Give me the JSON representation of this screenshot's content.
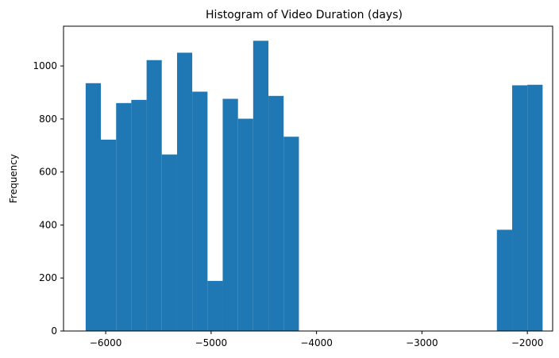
{
  "chart_data": {
    "type": "bar",
    "title": "Histogram of Video Duration (days)",
    "xlabel": "",
    "ylabel": "Frequency",
    "xlim": [
      -6400,
      -1760
    ],
    "ylim": [
      0,
      1150
    ],
    "xticks": [
      -6000,
      -5000,
      -4000,
      -3000,
      -2000
    ],
    "xtick_labels": [
      "−6000",
      "−5000",
      "−4000",
      "−3000",
      "−2000"
    ],
    "yticks": [
      0,
      200,
      400,
      600,
      800,
      1000
    ],
    "ytick_labels": [
      "0",
      "200",
      "400",
      "600",
      "800",
      "1000"
    ],
    "grid": false,
    "color": "#1f77b4",
    "bins": [
      {
        "x0": -6190,
        "x1": -6046,
        "count": 935
      },
      {
        "x0": -6046,
        "x1": -5901,
        "count": 722
      },
      {
        "x0": -5901,
        "x1": -5757,
        "count": 860
      },
      {
        "x0": -5757,
        "x1": -5612,
        "count": 872
      },
      {
        "x0": -5612,
        "x1": -5468,
        "count": 1022
      },
      {
        "x0": -5468,
        "x1": -5323,
        "count": 666
      },
      {
        "x0": -5323,
        "x1": -5179,
        "count": 1050
      },
      {
        "x0": -5179,
        "x1": -5034,
        "count": 903
      },
      {
        "x0": -5034,
        "x1": -4890,
        "count": 189
      },
      {
        "x0": -4890,
        "x1": -4745,
        "count": 876
      },
      {
        "x0": -4745,
        "x1": -4601,
        "count": 801
      },
      {
        "x0": -4601,
        "x1": -4456,
        "count": 1095
      },
      {
        "x0": -4456,
        "x1": -4312,
        "count": 887
      },
      {
        "x0": -4312,
        "x1": -4167,
        "count": 733
      },
      {
        "x0": -4167,
        "x1": -4023,
        "count": 0
      },
      {
        "x0": -4023,
        "x1": -3878,
        "count": 0
      },
      {
        "x0": -3878,
        "x1": -3734,
        "count": 0
      },
      {
        "x0": -3734,
        "x1": -3589,
        "count": 0
      },
      {
        "x0": -3589,
        "x1": -3445,
        "count": 0
      },
      {
        "x0": -3445,
        "x1": -3300,
        "count": 0
      },
      {
        "x0": -3300,
        "x1": -3156,
        "count": 0
      },
      {
        "x0": -3156,
        "x1": -3011,
        "count": 0
      },
      {
        "x0": -3011,
        "x1": -2867,
        "count": 0
      },
      {
        "x0": -2867,
        "x1": -2722,
        "count": 0
      },
      {
        "x0": -2722,
        "x1": -2578,
        "count": 0
      },
      {
        "x0": -2578,
        "x1": -2433,
        "count": 0
      },
      {
        "x0": -2433,
        "x1": -2289,
        "count": 0
      },
      {
        "x0": -2289,
        "x1": -2144,
        "count": 382
      },
      {
        "x0": -2144,
        "x1": -2000,
        "count": 927
      },
      {
        "x0": -2000,
        "x1": -1855,
        "count": 929
      }
    ]
  }
}
